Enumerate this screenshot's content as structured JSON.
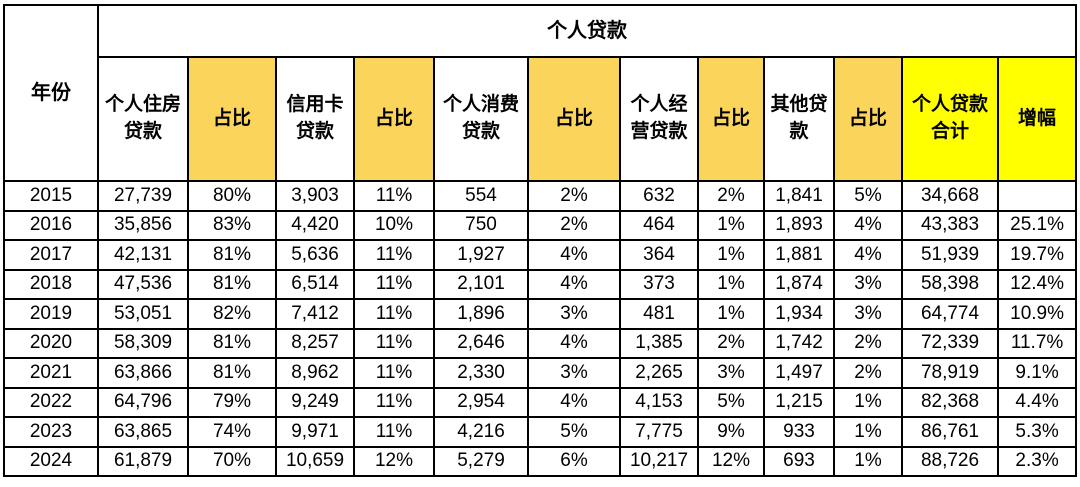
{
  "colors": {
    "ratio_header_bg": "#FBD45C",
    "total_header_bg": "#FFFF00",
    "border": "#000000",
    "text": "#000000",
    "cell_bg": "#FFFFFF"
  },
  "chart_data": {
    "type": "table",
    "title": "个人贷款",
    "corner_header": "年份",
    "group_header": "个人贷款",
    "column_headers": [
      "个人住房\n贷款",
      "占比",
      "信用卡\n贷款",
      "占比",
      "个人消费\n贷款",
      "占比",
      "个人经\n营贷款",
      "占比",
      "其他贷\n款",
      "占比",
      "个人贷款\n合计",
      "增幅"
    ],
    "rows": [
      [
        "2015",
        "27,739",
        "80%",
        "3,903",
        "11%",
        "554",
        "2%",
        "632",
        "2%",
        "1,841",
        "5%",
        "34,668",
        ""
      ],
      [
        "2016",
        "35,856",
        "83%",
        "4,420",
        "10%",
        "750",
        "2%",
        "464",
        "1%",
        "1,893",
        "4%",
        "43,383",
        "25.1%"
      ],
      [
        "2017",
        "42,131",
        "81%",
        "5,636",
        "11%",
        "1,927",
        "4%",
        "364",
        "1%",
        "1,881",
        "4%",
        "51,939",
        "19.7%"
      ],
      [
        "2018",
        "47,536",
        "81%",
        "6,514",
        "11%",
        "2,101",
        "4%",
        "373",
        "1%",
        "1,874",
        "3%",
        "58,398",
        "12.4%"
      ],
      [
        "2019",
        "53,051",
        "82%",
        "7,412",
        "11%",
        "1,896",
        "3%",
        "481",
        "1%",
        "1,934",
        "3%",
        "64,774",
        "10.9%"
      ],
      [
        "2020",
        "58,309",
        "81%",
        "8,257",
        "11%",
        "2,646",
        "4%",
        "1,385",
        "2%",
        "1,742",
        "2%",
        "72,339",
        "11.7%"
      ],
      [
        "2021",
        "63,866",
        "81%",
        "8,962",
        "11%",
        "2,330",
        "3%",
        "2,265",
        "3%",
        "1,497",
        "2%",
        "78,919",
        "9.1%"
      ],
      [
        "2022",
        "64,796",
        "79%",
        "9,249",
        "11%",
        "2,954",
        "4%",
        "4,153",
        "5%",
        "1,215",
        "1%",
        "82,368",
        "4.4%"
      ],
      [
        "2023",
        "63,865",
        "74%",
        "9,971",
        "11%",
        "4,216",
        "5%",
        "7,775",
        "9%",
        "933",
        "1%",
        "86,761",
        "5.3%"
      ],
      [
        "2024",
        "61,879",
        "70%",
        "10,659",
        "12%",
        "5,279",
        "6%",
        "10,217",
        "12%",
        "693",
        "1%",
        "88,726",
        "2.3%"
      ]
    ]
  }
}
